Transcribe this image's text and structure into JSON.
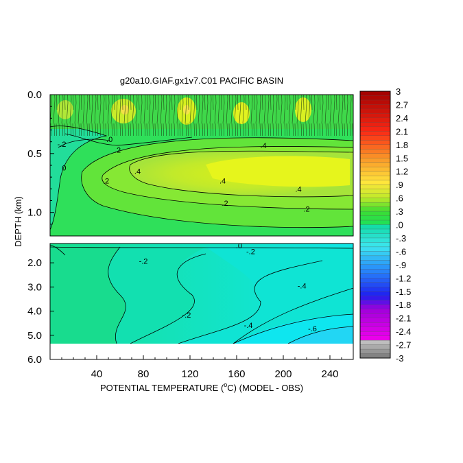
{
  "chart_data": {
    "type": "heatmap",
    "title": "g20a10.GIAF.gx1v7.C01 PACIFIC BASIN",
    "xlabel_parts": [
      "POTENTIAL TEMPERATURE (",
      "o",
      "C) (MODEL - OBS)"
    ],
    "ylabel": "DEPTH (km)",
    "x_ticks": [
      "40",
      "80",
      "120",
      "160",
      "200",
      "240"
    ],
    "x_tick_values": [
      40,
      80,
      120,
      160,
      200,
      240
    ],
    "xlim": [
      0,
      260
    ],
    "upper_panel": {
      "ylim": [
        0.0,
        1.2
      ],
      "y_ticks": [
        "0.0",
        "0.5",
        "1.0"
      ],
      "y_tick_values": [
        0.0,
        0.5,
        1.0
      ]
    },
    "lower_panel": {
      "ylim": [
        1.2,
        6.0
      ],
      "data_bottom": 5.35,
      "y_ticks": [
        "2.0",
        "3.0",
        "4.0",
        "5.0",
        "6.0"
      ],
      "y_tick_values": [
        2.0,
        3.0,
        4.0,
        5.0,
        6.0
      ]
    },
    "colorbar": {
      "range": [
        -3,
        3
      ],
      "step": 0.1,
      "labels": [
        "3",
        "2.7",
        "2.4",
        "2.1",
        "1.8",
        "1.5",
        "1.2",
        ".9",
        ".6",
        ".3",
        ".0",
        "-.3",
        "-.6",
        "-.9",
        "-1.2",
        "-1.5",
        "-1.8",
        "-2.1",
        "-2.4",
        "-2.7",
        "-3"
      ],
      "label_values": [
        3,
        2.7,
        2.4,
        2.1,
        1.8,
        1.5,
        1.2,
        0.9,
        0.6,
        0.3,
        0.0,
        -0.3,
        -0.6,
        -0.9,
        -1.2,
        -1.5,
        -1.8,
        -2.1,
        -2.4,
        -2.7,
        -3
      ]
    },
    "contour_labels": [
      {
        "text": "-.2",
        "panel": "upper",
        "x": 10,
        "y": 0.42
      },
      {
        "text": "0",
        "panel": "upper",
        "x": 12,
        "y": 0.62
      },
      {
        "text": ".0",
        "panel": "upper",
        "x": 51,
        "y": 0.38
      },
      {
        "text": ".2",
        "panel": "upper",
        "x": 58,
        "y": 0.47
      },
      {
        "text": ".2",
        "panel": "upper",
        "x": 48,
        "y": 0.73
      },
      {
        "text": ".4",
        "panel": "upper",
        "x": 75,
        "y": 0.65
      },
      {
        "text": ".4",
        "panel": "upper",
        "x": 148,
        "y": 0.73
      },
      {
        "text": ".4",
        "panel": "upper",
        "x": 183,
        "y": 0.43
      },
      {
        "text": ".4",
        "panel": "upper",
        "x": 213,
        "y": 0.8
      },
      {
        "text": ".2",
        "panel": "upper",
        "x": 150,
        "y": 0.92
      },
      {
        "text": ".2",
        "panel": "upper",
        "x": 220,
        "y": 0.97
      },
      {
        "text": ".0",
        "panel": "lower",
        "x": 162,
        "y": 1.28
      },
      {
        "text": "-.2",
        "panel": "lower",
        "x": 172,
        "y": 1.52
      },
      {
        "text": "-.2",
        "panel": "lower",
        "x": 80,
        "y": 1.92
      },
      {
        "text": "-.2",
        "panel": "lower",
        "x": 117,
        "y": 4.15
      },
      {
        "text": "-.4",
        "panel": "lower",
        "x": 216,
        "y": 2.95
      },
      {
        "text": "-.4",
        "panel": "lower",
        "x": 170,
        "y": 4.58
      },
      {
        "text": "-.6",
        "panel": "lower",
        "x": 225,
        "y": 4.72
      }
    ]
  }
}
